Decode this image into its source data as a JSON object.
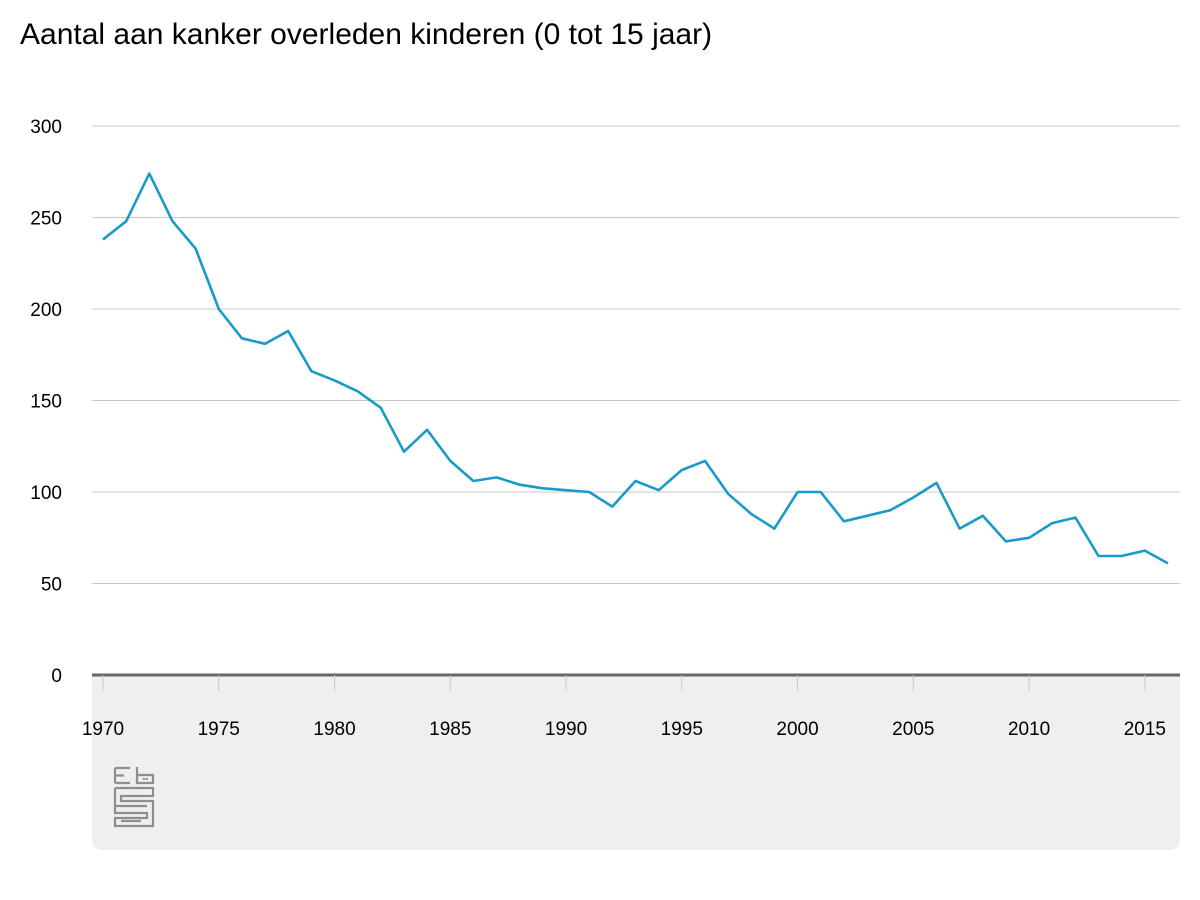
{
  "title": "Aantal aan kanker overleden kinderen (0 tot 15 jaar)",
  "colors": {
    "line": "#1a9ac9",
    "grid": "#c8c8c8",
    "baseline": "#666666",
    "panel": "#efefef"
  },
  "logo_icon": "cbs-logo",
  "chart_data": {
    "type": "line",
    "title": "Aantal aan kanker overleden kinderen (0 tot 15 jaar)",
    "xlabel": "",
    "ylabel": "",
    "ylim": [
      0,
      300
    ],
    "xlim": [
      1970,
      2016
    ],
    "yticks": [
      0,
      50,
      100,
      150,
      200,
      250,
      300
    ],
    "xticks": [
      1970,
      1975,
      1980,
      1985,
      1990,
      1995,
      2000,
      2005,
      2010,
      2015
    ],
    "grid": true,
    "x": [
      1970,
      1971,
      1972,
      1973,
      1974,
      1975,
      1976,
      1977,
      1978,
      1979,
      1980,
      1981,
      1982,
      1983,
      1984,
      1985,
      1986,
      1987,
      1988,
      1989,
      1990,
      1991,
      1992,
      1993,
      1994,
      1995,
      1996,
      1997,
      1998,
      1999,
      2000,
      2001,
      2002,
      2003,
      2004,
      2005,
      2006,
      2007,
      2008,
      2009,
      2010,
      2011,
      2012,
      2013,
      2014,
      2015,
      2016
    ],
    "series": [
      {
        "values": [
          238,
          248,
          274,
          248,
          233,
          200,
          184,
          181,
          188,
          166,
          161,
          155,
          146,
          122,
          134,
          117,
          106,
          108,
          104,
          102,
          101,
          100,
          92,
          106,
          101,
          112,
          117,
          99,
          88,
          80,
          100,
          100,
          84,
          87,
          90,
          97,
          105,
          80,
          87,
          73,
          75,
          83,
          86,
          65,
          65,
          68,
          61
        ]
      }
    ]
  }
}
